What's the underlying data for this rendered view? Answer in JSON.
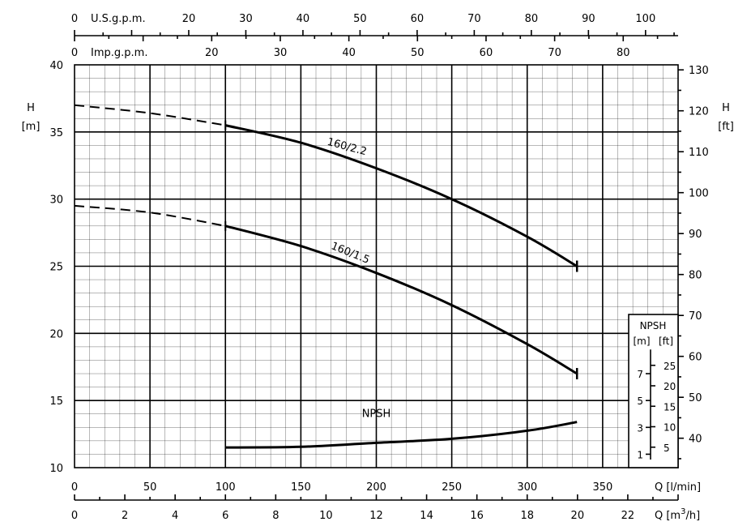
{
  "chart_data": {
    "type": "line",
    "axes": {
      "q_lmin": {
        "label": "Q [l/min]",
        "range": [
          0,
          400
        ],
        "ticks": [
          0,
          50,
          100,
          150,
          200,
          250,
          300,
          350
        ]
      },
      "q_m3h": {
        "label_prefix": "Q [m",
        "label_sup": "3",
        "label_suffix": "/h]",
        "range": [
          0,
          24
        ],
        "ticks": [
          0,
          2,
          4,
          6,
          8,
          10,
          12,
          14,
          16,
          18,
          20,
          22
        ]
      },
      "us_gpm": {
        "label": "U.S.g.p.m.",
        "range": [
          0,
          105.7
        ],
        "ticks": [
          0,
          20,
          30,
          40,
          50,
          60,
          70,
          80,
          90,
          100
        ]
      },
      "imp_gpm": {
        "label": "Imp.g.p.m.",
        "range": [
          0,
          88
        ],
        "ticks": [
          0,
          20,
          30,
          40,
          50,
          60,
          70,
          80
        ]
      },
      "h_m": {
        "label_top": "H",
        "label_bottom": "[m]",
        "range": [
          10,
          40
        ],
        "ticks": [
          10,
          15,
          20,
          25,
          30,
          35,
          40
        ]
      },
      "h_ft": {
        "label_top": "H",
        "label_bottom": "[ft]",
        "range": [
          32.81,
          131.23
        ],
        "ticks": [
          40,
          50,
          60,
          70,
          80,
          90,
          100,
          110,
          120,
          130
        ]
      }
    },
    "npsh_inset": {
      "title": "NPSH",
      "unit_m": "[m]",
      "unit_ft": "[ft]",
      "m_range": [
        0,
        8.8
      ],
      "ft_range": [
        0,
        28.87
      ],
      "m_ticks": [
        1,
        3,
        5,
        7
      ],
      "ft_ticks": [
        5,
        10,
        15,
        20,
        25
      ]
    },
    "series": [
      {
        "name": "160/2.2",
        "dashed": {
          "x_lmin": [
            0,
            50,
            100
          ],
          "y_m": [
            37.0,
            36.4,
            35.5
          ]
        },
        "solid": {
          "x_lmin": [
            100,
            150,
            200,
            250,
            300,
            333
          ],
          "y_m": [
            35.5,
            34.2,
            32.3,
            30.0,
            27.2,
            25.0
          ]
        }
      },
      {
        "name": "160/1.5",
        "dashed": {
          "x_lmin": [
            0,
            50,
            100
          ],
          "y_m": [
            29.5,
            29.0,
            28.0
          ]
        },
        "solid": {
          "x_lmin": [
            100,
            150,
            200,
            250,
            300,
            333
          ],
          "y_m": [
            28.0,
            26.5,
            24.5,
            22.1,
            19.2,
            17.0
          ]
        }
      },
      {
        "name": "NPSH",
        "solid": {
          "x_lmin": [
            100,
            150,
            200,
            250,
            300,
            333
          ],
          "npsh_m": [
            1.5,
            1.55,
            1.85,
            2.15,
            2.75,
            3.4
          ]
        }
      }
    ],
    "grid": true
  }
}
